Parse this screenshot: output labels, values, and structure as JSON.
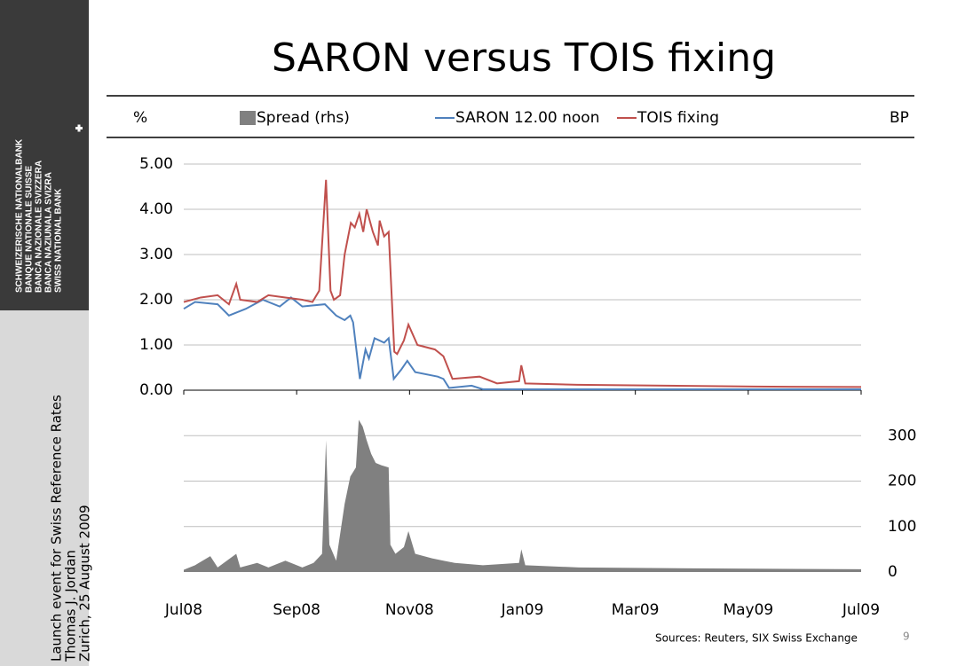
{
  "sidebar": {
    "bank_names": [
      "SCHWEIZERISCHE NATIONALBANK",
      "BANQUE NATIONALE SUISSE",
      "BANCA NAZIONALE SVIZZERA",
      "BANCA NAZIUNALA SVIZRA",
      "SWISS NATIONAL BANK"
    ],
    "event": [
      "Launch event for Swiss Reference Rates",
      "Thomas J. Jordan",
      "Zurich, 25 August 2009"
    ]
  },
  "footer": {
    "sources": "Sources: Reuters, SIX Swiss Exchange",
    "page": "9"
  },
  "chart_data": {
    "type": "line",
    "title": "SARON versus TOIS fixing",
    "ylabel": "%",
    "y2label": "BP",
    "xlim": [
      0,
      12
    ],
    "xticks": [
      {
        "value": 0,
        "label": "Jul08"
      },
      {
        "value": 2,
        "label": "Sep08"
      },
      {
        "value": 4,
        "label": "Nov08"
      },
      {
        "value": 6,
        "label": "Jan09"
      },
      {
        "value": 8,
        "label": "Mar09"
      },
      {
        "value": 10,
        "label": "May09"
      },
      {
        "value": 12,
        "label": "Jul09"
      }
    ],
    "ylim": [
      0,
      5
    ],
    "yticks": [
      {
        "value": 0,
        "label": "0.00"
      },
      {
        "value": 1,
        "label": "1.00"
      },
      {
        "value": 2,
        "label": "2.00"
      },
      {
        "value": 3,
        "label": "3.00"
      },
      {
        "value": 4,
        "label": "4.00"
      },
      {
        "value": 5,
        "label": "5.00"
      }
    ],
    "y2lim": [
      0,
      400
    ],
    "y2ticks": [
      0,
      100,
      200,
      300
    ],
    "grid": true,
    "series": [
      {
        "name": "Spread (rhs)",
        "color": "#808080",
        "axis": "y2",
        "kind": "area",
        "x": [
          0,
          0.2,
          0.47,
          0.6,
          0.93,
          1.0,
          1.3,
          1.5,
          1.8,
          2.1,
          2.3,
          2.45,
          2.52,
          2.58,
          2.7,
          2.85,
          2.95,
          3.05,
          3.1,
          3.17,
          3.24,
          3.32,
          3.4,
          3.5,
          3.63,
          3.66,
          3.75,
          3.9,
          3.98,
          4.1,
          4.4,
          4.6,
          4.8,
          5.3,
          5.94,
          5.98,
          6.05,
          7,
          9,
          12
        ],
        "values": [
          5,
          15,
          35,
          10,
          40,
          10,
          20,
          10,
          25,
          10,
          20,
          40,
          290,
          60,
          25,
          150,
          210,
          230,
          335,
          320,
          290,
          260,
          240,
          235,
          230,
          60,
          40,
          55,
          90,
          40,
          30,
          25,
          20,
          15,
          20,
          50,
          15,
          10,
          8,
          6
        ]
      },
      {
        "name": "SARON 12.00 noon",
        "color": "#4f81bd",
        "x": [
          0,
          0.2,
          0.6,
          0.8,
          1.1,
          1.4,
          1.7,
          1.9,
          2.1,
          2.5,
          2.7,
          2.85,
          2.95,
          3.0,
          3.12,
          3.22,
          3.28,
          3.38,
          3.55,
          3.63,
          3.72,
          3.85,
          3.96,
          4.1,
          4.5,
          4.6,
          4.7,
          5.1,
          5.3,
          12
        ],
        "values": [
          1.8,
          1.95,
          1.9,
          1.65,
          1.8,
          2.0,
          1.85,
          2.05,
          1.85,
          1.9,
          1.65,
          1.55,
          1.65,
          1.5,
          0.25,
          0.9,
          0.7,
          1.15,
          1.05,
          1.15,
          0.25,
          0.45,
          0.65,
          0.4,
          0.3,
          0.25,
          0.05,
          0.1,
          0.02,
          0.02
        ]
      },
      {
        "name": "TOIS fixing",
        "color": "#c0504d",
        "x": [
          0,
          0.3,
          0.6,
          0.8,
          0.93,
          1.0,
          1.3,
          1.5,
          1.8,
          2.1,
          2.28,
          2.4,
          2.52,
          2.6,
          2.66,
          2.77,
          2.85,
          2.96,
          3.03,
          3.11,
          3.18,
          3.24,
          3.35,
          3.44,
          3.47,
          3.55,
          3.63,
          3.73,
          3.78,
          3.9,
          3.98,
          4.14,
          4.45,
          4.6,
          4.76,
          5.24,
          5.55,
          5.94,
          5.98,
          6.05,
          6.97,
          8.54,
          10.1,
          12
        ],
        "values": [
          1.95,
          2.05,
          2.1,
          1.9,
          2.35,
          2.0,
          1.95,
          2.1,
          2.05,
          2.0,
          1.95,
          2.2,
          4.65,
          2.2,
          2.0,
          2.1,
          3.0,
          3.7,
          3.6,
          3.9,
          3.5,
          4.0,
          3.5,
          3.2,
          3.75,
          3.4,
          3.5,
          0.85,
          0.8,
          1.1,
          1.45,
          1.0,
          0.9,
          0.75,
          0.25,
          0.3,
          0.15,
          0.2,
          0.55,
          0.15,
          0.12,
          0.1,
          0.08,
          0.07
        ]
      }
    ]
  }
}
